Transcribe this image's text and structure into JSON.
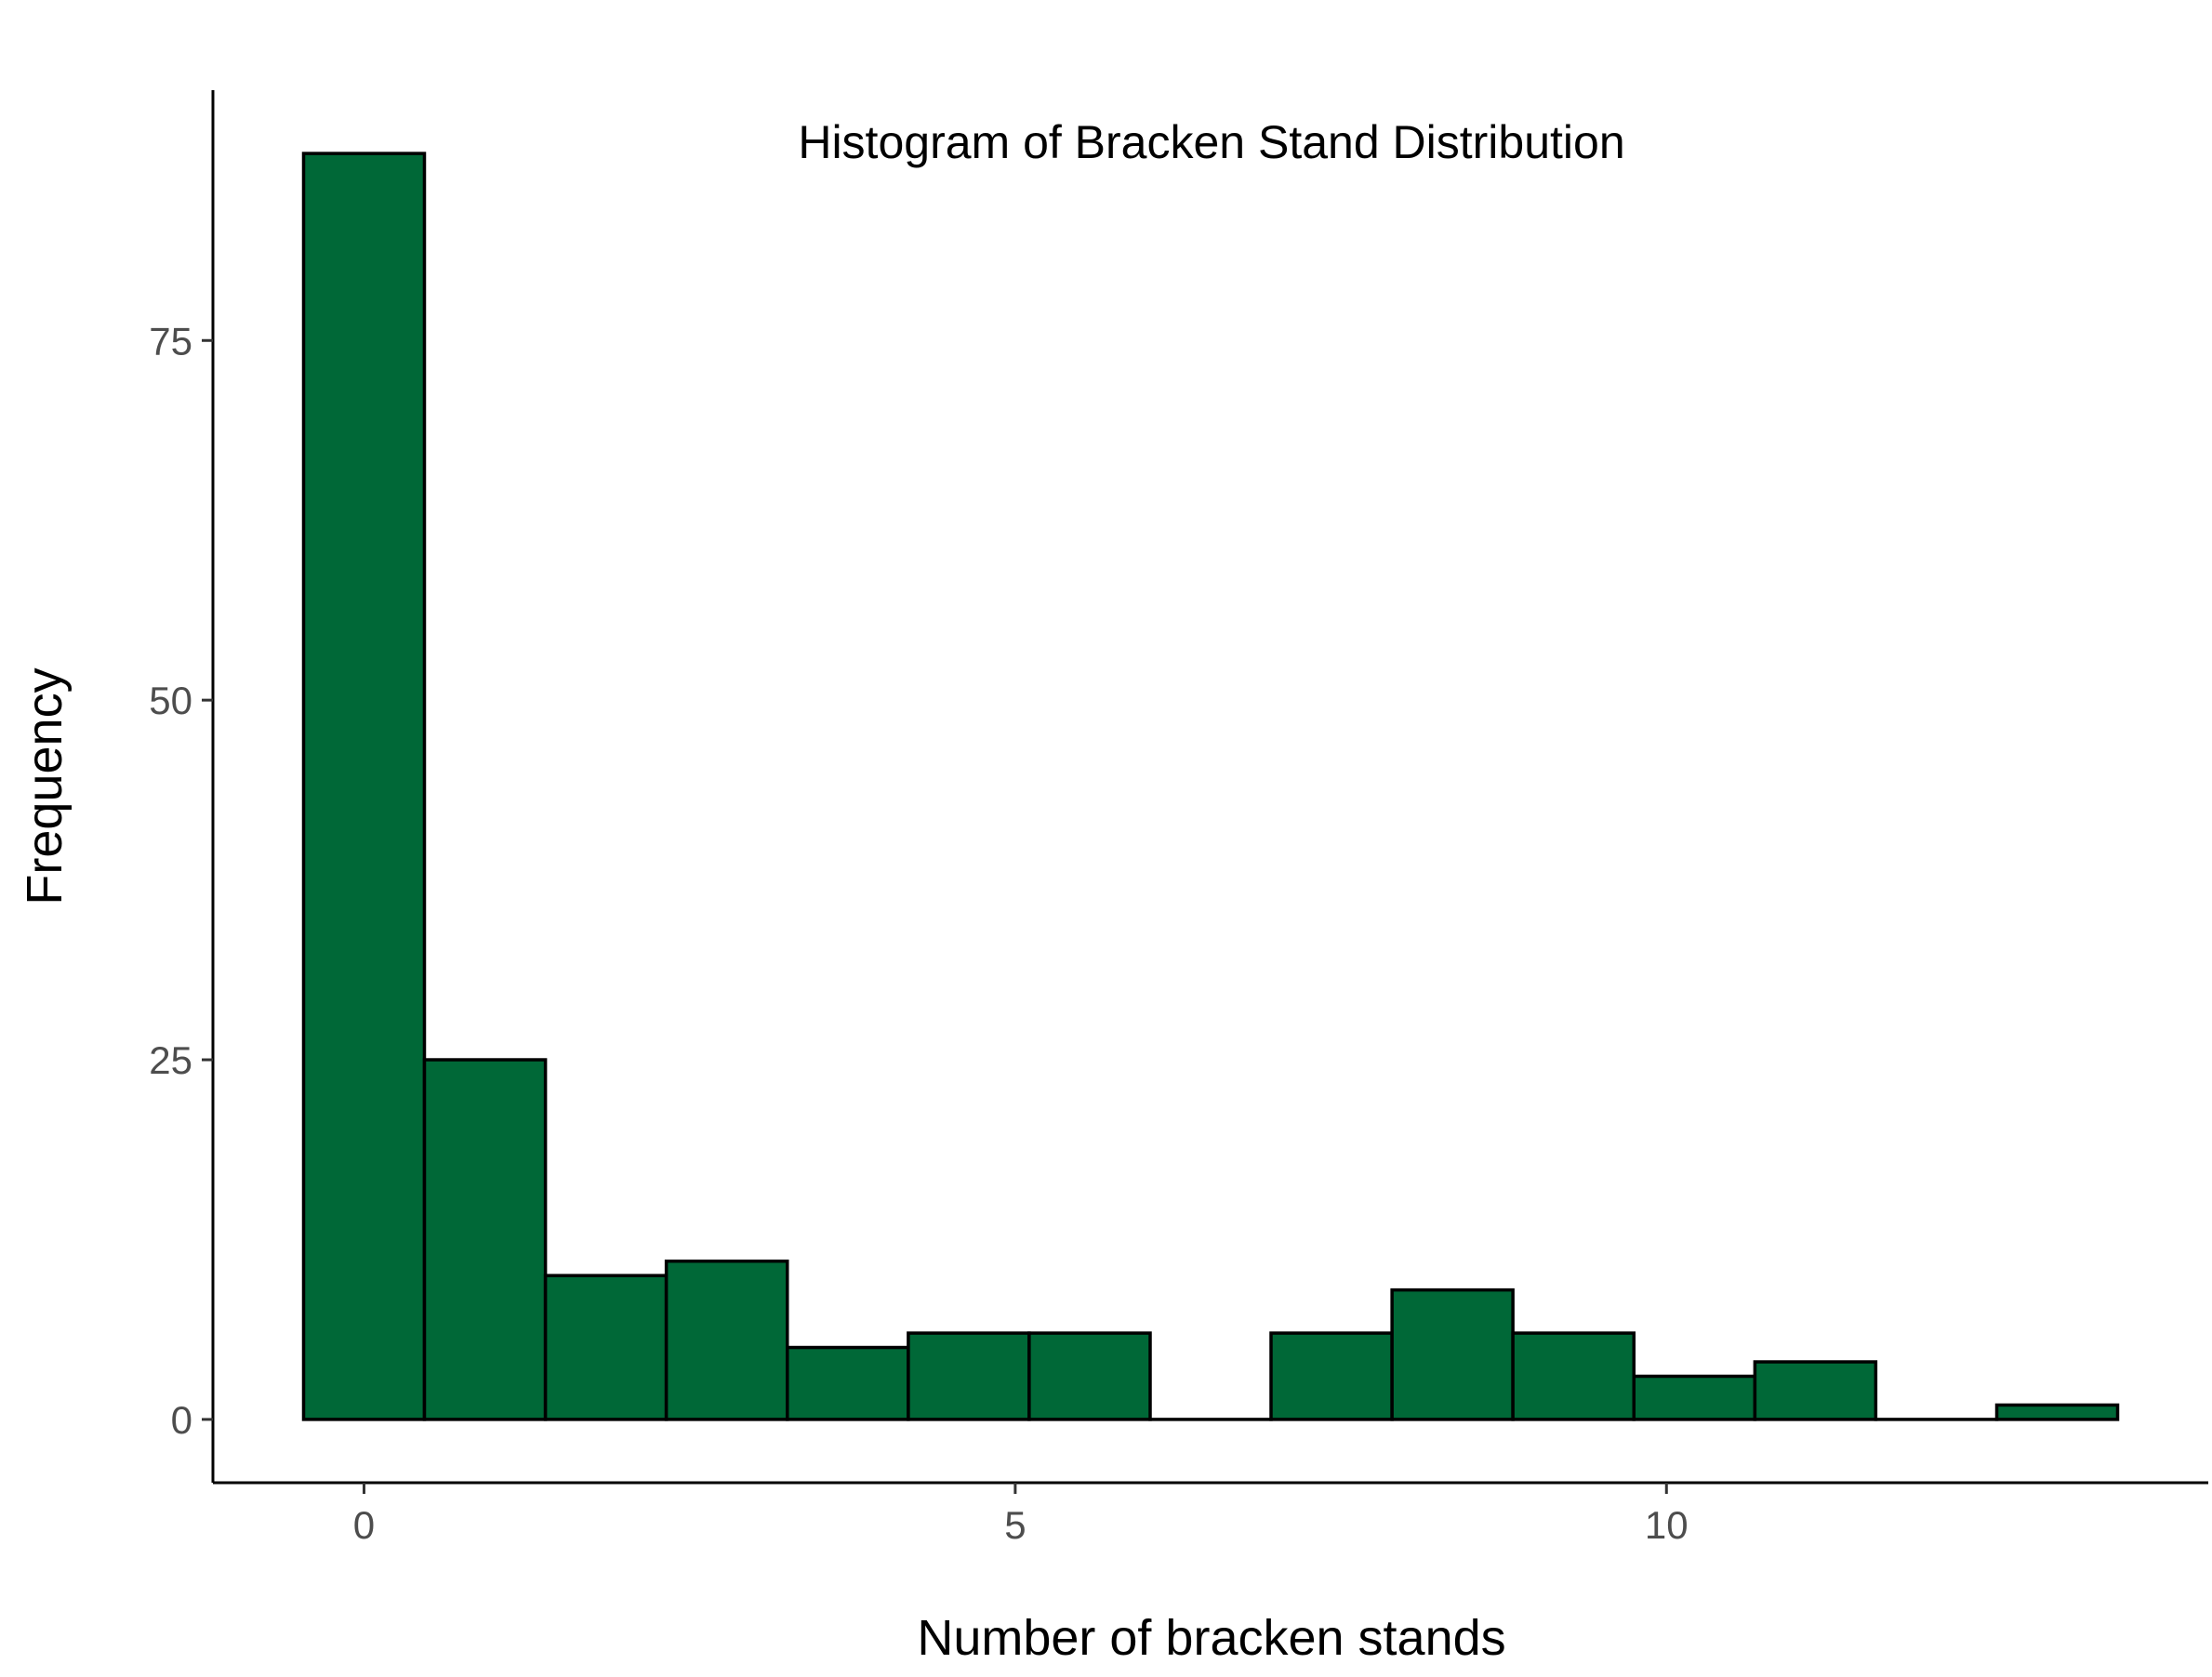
{
  "chart_data": {
    "type": "bar",
    "title": "Histogram of Bracken Stand Distribution",
    "xlabel": "Number of bracken stands",
    "ylabel": "Frequency",
    "bin_width": 0.929,
    "bins": [
      {
        "x0": -0.464,
        "x1": 0.464,
        "count": 88
      },
      {
        "x0": 0.464,
        "x1": 1.393,
        "count": 25
      },
      {
        "x0": 1.393,
        "x1": 2.321,
        "count": 10
      },
      {
        "x0": 2.321,
        "x1": 3.25,
        "count": 11
      },
      {
        "x0": 3.25,
        "x1": 4.179,
        "count": 5
      },
      {
        "x0": 4.179,
        "x1": 5.107,
        "count": 6
      },
      {
        "x0": 5.107,
        "x1": 6.036,
        "count": 6
      },
      {
        "x0": 6.036,
        "x1": 6.964,
        "count": 0
      },
      {
        "x0": 6.964,
        "x1": 7.893,
        "count": 6
      },
      {
        "x0": 7.893,
        "x1": 8.821,
        "count": 9
      },
      {
        "x0": 8.821,
        "x1": 9.75,
        "count": 6
      },
      {
        "x0": 9.75,
        "x1": 10.679,
        "count": 3
      },
      {
        "x0": 10.679,
        "x1": 11.607,
        "count": 4
      },
      {
        "x0": 11.607,
        "x1": 12.536,
        "count": 0
      },
      {
        "x0": 12.536,
        "x1": 13.464,
        "count": 1
      }
    ],
    "xlim": [
      -1.16,
      14.16
    ],
    "ylim": [
      -4.4,
      92.4
    ],
    "x_ticks": [
      0,
      5,
      10
    ],
    "x_tick_labels": [
      "0",
      "5",
      "10"
    ],
    "y_ticks": [
      0,
      25,
      50,
      75
    ],
    "y_tick_labels": [
      "0",
      "25",
      "50",
      "75"
    ],
    "grid": false,
    "legend": "none",
    "colors": {
      "bar_fill": "#006837",
      "bar_outline": "#000000"
    }
  }
}
